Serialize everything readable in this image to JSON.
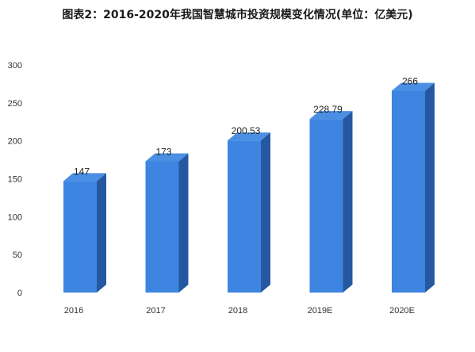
{
  "chart_data": {
    "type": "bar",
    "title": "图表2：2016-2020年我国智慧城市投资规模变化情况(单位：亿美元)",
    "xlabel": "",
    "ylabel": "",
    "categories": [
      "2016",
      "2017",
      "2018",
      "2019E",
      "2020E"
    ],
    "values": [
      147,
      173,
      200.53,
      228.79,
      266
    ],
    "data_labels": [
      "147",
      "173",
      "200.53",
      "228.79",
      "266"
    ],
    "ylim": [
      0,
      300
    ],
    "yticks": [
      "0",
      "50",
      "100",
      "150",
      "200",
      "250",
      "300"
    ],
    "grid": false,
    "legend": "none",
    "style": "3d-column"
  },
  "colors": {
    "bar_front": "#3d85e0",
    "bar_side": "#2558a0",
    "bar_top": "#4a8fe3",
    "axis_text": "#333333"
  }
}
